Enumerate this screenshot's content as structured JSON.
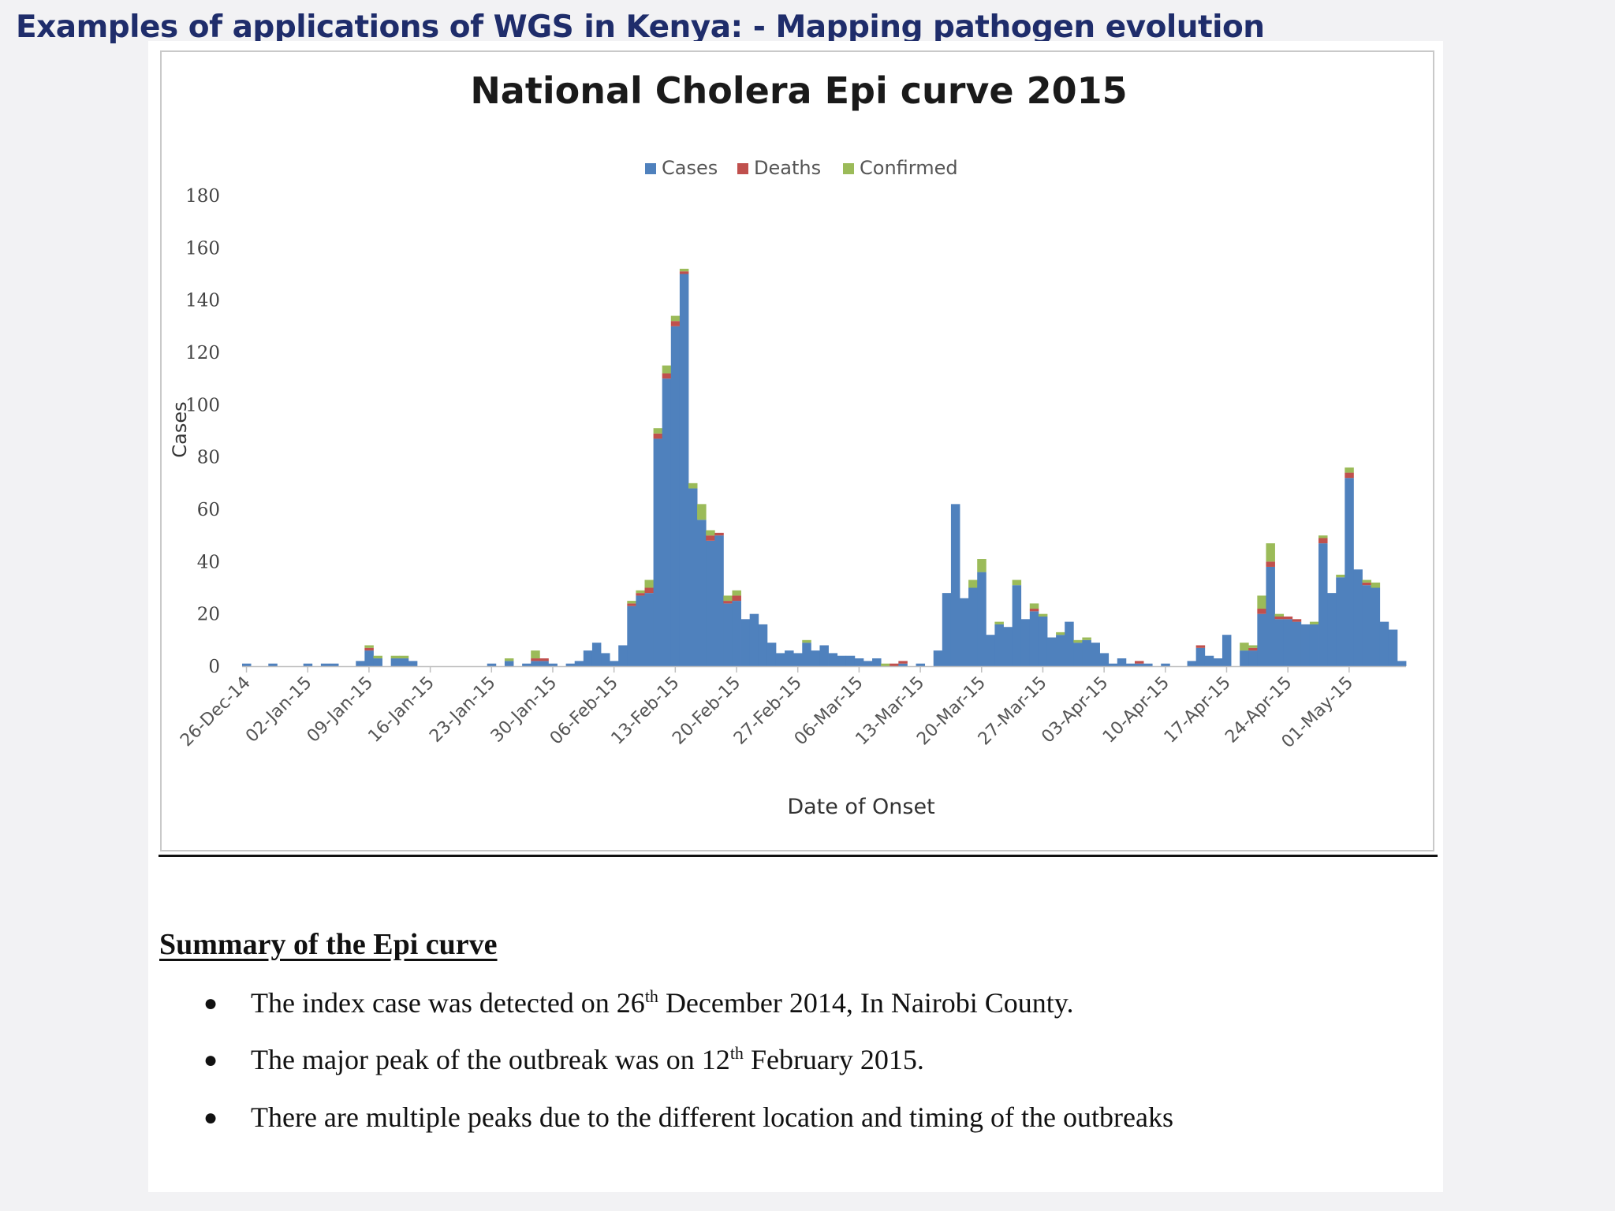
{
  "slide": {
    "title": "Examples of applications of WGS in Kenya: - Mapping pathogen evolution"
  },
  "colors": {
    "cases": "#4f81bd",
    "deaths": "#c0504d",
    "confirmed": "#9bbb59",
    "title_blue": "#1f2d6b"
  },
  "chart_data": {
    "type": "bar",
    "stacked": true,
    "title": "National Cholera Epi curve 2015",
    "xlabel": "Date of Onset",
    "ylabel": "Cases",
    "ylim": [
      0,
      180
    ],
    "yticks": [
      0,
      20,
      40,
      60,
      80,
      100,
      120,
      140,
      160,
      180
    ],
    "legend": {
      "placement": "top-center",
      "items": [
        "Cases",
        "Deaths",
        "Confirmed"
      ]
    },
    "start_date": "26-Dec-14",
    "x_tick_labels": [
      "26-Dec-14",
      "02-Jan-15",
      "09-Jan-15",
      "16-Jan-15",
      "23-Jan-15",
      "30-Jan-15",
      "06-Feb-15",
      "13-Feb-15",
      "20-Feb-15",
      "27-Feb-15",
      "06-Mar-15",
      "13-Mar-15",
      "20-Mar-15",
      "27-Mar-15",
      "03-Apr-15",
      "10-Apr-15",
      "17-Apr-15",
      "24-Apr-15",
      "01-May-15"
    ],
    "series": [
      {
        "name": "Cases",
        "values": [
          1,
          0,
          0,
          1,
          0,
          0,
          0,
          1,
          0,
          1,
          1,
          0,
          0,
          2,
          6,
          3,
          0,
          3,
          3,
          2,
          0,
          0,
          0,
          0,
          0,
          0,
          0,
          0,
          1,
          0,
          2,
          0,
          1,
          2,
          2,
          1,
          0,
          1,
          2,
          6,
          9,
          5,
          2,
          8,
          23,
          27,
          28,
          87,
          110,
          130,
          150,
          68,
          56,
          48,
          50,
          24,
          25,
          18,
          20,
          16,
          9,
          5,
          6,
          5,
          9,
          6,
          8,
          5,
          4,
          4,
          3,
          2,
          3,
          0,
          0,
          1,
          0,
          1,
          0,
          6,
          28,
          62,
          26,
          30,
          36,
          12,
          16,
          15,
          31,
          18,
          21,
          19,
          11,
          12,
          17,
          9,
          10,
          9,
          5,
          1,
          3,
          1,
          1,
          1,
          0,
          1,
          0,
          0,
          2,
          7,
          4,
          3,
          12,
          0,
          6,
          6,
          20,
          38,
          18,
          18,
          17,
          16,
          16,
          47,
          28,
          34,
          72,
          37,
          31,
          30,
          17,
          14,
          2
        ]
      },
      {
        "name": "Deaths",
        "values": [
          0,
          0,
          0,
          0,
          0,
          0,
          0,
          0,
          0,
          0,
          0,
          0,
          0,
          0,
          1,
          0,
          0,
          0,
          0,
          0,
          0,
          0,
          0,
          0,
          0,
          0,
          0,
          0,
          0,
          0,
          0,
          0,
          0,
          1,
          1,
          0,
          0,
          0,
          0,
          0,
          0,
          0,
          0,
          0,
          1,
          1,
          2,
          2,
          2,
          2,
          1,
          0,
          0,
          2,
          1,
          1,
          2,
          0,
          0,
          0,
          0,
          0,
          0,
          0,
          0,
          0,
          0,
          0,
          0,
          0,
          0,
          0,
          0,
          0,
          1,
          1,
          0,
          0,
          0,
          0,
          0,
          0,
          0,
          0,
          0,
          0,
          0,
          0,
          0,
          0,
          1,
          0,
          0,
          0,
          0,
          0,
          0,
          0,
          0,
          0,
          0,
          0,
          1,
          0,
          0,
          0,
          0,
          0,
          0,
          1,
          0,
          0,
          0,
          0,
          0,
          1,
          2,
          2,
          1,
          1,
          1,
          0,
          0,
          2,
          0,
          0,
          2,
          0,
          1,
          0,
          0,
          0,
          0
        ]
      },
      {
        "name": "Confirmed",
        "values": [
          0,
          0,
          0,
          0,
          0,
          0,
          0,
          0,
          0,
          0,
          0,
          0,
          0,
          0,
          1,
          1,
          0,
          1,
          1,
          0,
          0,
          0,
          0,
          0,
          0,
          0,
          0,
          0,
          0,
          0,
          1,
          0,
          0,
          3,
          0,
          0,
          0,
          0,
          0,
          0,
          0,
          0,
          0,
          0,
          1,
          1,
          3,
          2,
          3,
          2,
          1,
          2,
          6,
          2,
          0,
          2,
          2,
          0,
          0,
          0,
          0,
          0,
          0,
          0,
          1,
          0,
          0,
          0,
          0,
          0,
          0,
          0,
          0,
          1,
          0,
          0,
          0,
          0,
          0,
          0,
          0,
          0,
          0,
          3,
          5,
          0,
          1,
          0,
          2,
          0,
          2,
          1,
          0,
          1,
          0,
          1,
          1,
          0,
          0,
          0,
          0,
          0,
          0,
          0,
          0,
          0,
          0,
          0,
          0,
          0,
          0,
          0,
          0,
          0,
          3,
          1,
          5,
          7,
          1,
          0,
          0,
          0,
          1,
          1,
          0,
          1,
          2,
          0,
          1,
          2,
          0,
          0,
          0
        ]
      }
    ]
  },
  "summary": {
    "heading": "Summary of the Epi curve",
    "items": [
      {
        "before": "The index case was detected on 26",
        "sup": "th",
        "after": " December 2014, In Nairobi County."
      },
      {
        "before": "The major peak of the outbreak was on 12",
        "sup": "th",
        "after": " February 2015."
      },
      {
        "before": "There are multiple peaks due to the different location and timing of the outbreaks",
        "sup": "",
        "after": ""
      }
    ]
  }
}
